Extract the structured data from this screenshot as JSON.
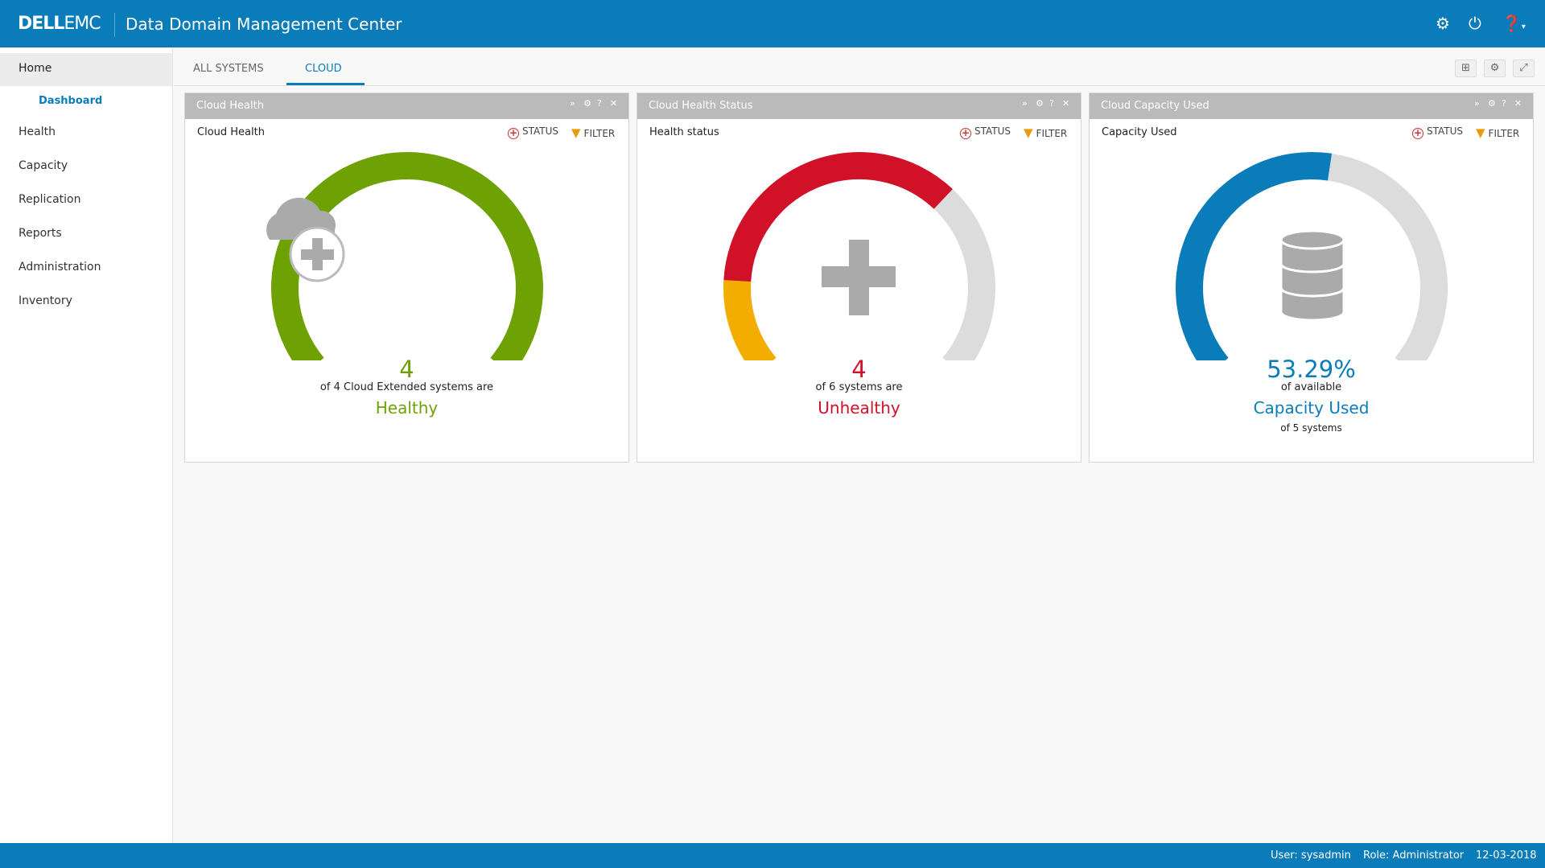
{
  "header": {
    "logo_dell": "DELL",
    "logo_emc": "EMC",
    "title": "Data Domain Management Center",
    "icons": [
      "gear-icon",
      "power-icon",
      "help-icon"
    ]
  },
  "sidebar": {
    "home": "Home",
    "dashboard": "Dashboard",
    "items": [
      "Health",
      "Capacity",
      "Replication",
      "Reports",
      "Administration",
      "Inventory"
    ]
  },
  "tabs": [
    {
      "label": "ALL SYSTEMS",
      "active": false
    },
    {
      "label": "CLOUD",
      "active": true
    }
  ],
  "widgets": [
    {
      "title": "Cloud Health",
      "subtitle": "Cloud Health",
      "status": "STATUS",
      "filter": "FILTER",
      "icon": "cloud-health-icon",
      "value": "4",
      "line1": "of 4 Cloud Extended systems are",
      "line2": "Healthy",
      "line3": "",
      "color": "#6ea204",
      "segments": [
        {
          "value": 4,
          "color": "#6ea204"
        }
      ],
      "total": 4
    },
    {
      "title": "Cloud Health Status",
      "subtitle": "Health status",
      "status": "STATUS",
      "filter": "FILTER",
      "icon": "plus-icon",
      "value": "4",
      "line1": "of 6 systems are",
      "line2": "Unhealthy",
      "line3": "",
      "color": "#d01128",
      "segments": [
        {
          "value": 1,
          "color": "#f2ad00"
        },
        {
          "value": 3,
          "color": "#d01128"
        },
        {
          "value": 2,
          "color": "#dcdcdc"
        }
      ],
      "total": 6
    },
    {
      "title": "Cloud Capacity Used",
      "subtitle": "Capacity Used",
      "status": "STATUS",
      "filter": "FILTER",
      "icon": "database-icon",
      "value": "53.29%",
      "line1": "of available",
      "line2": "Capacity Used",
      "line3": "of 5 systems",
      "color": "#0a7cba",
      "segments": [
        {
          "value": 53.29,
          "color": "#0a7cba"
        },
        {
          "value": 46.71,
          "color": "#dcdcdc"
        }
      ],
      "total": 100
    }
  ],
  "footer": {
    "user": "User: sysadmin",
    "role": "Role: Administrator",
    "date": "12-03-2018"
  }
}
